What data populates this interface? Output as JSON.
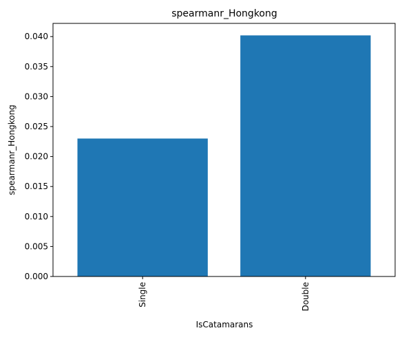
{
  "chart_data": {
    "type": "bar",
    "title": "spearmanr_Hongkong",
    "xlabel": "IsCatamarans",
    "ylabel": "spearmanr_Hongkong",
    "categories": [
      "Single",
      "Double"
    ],
    "values": [
      0.023,
      0.0402
    ],
    "ylim": [
      0,
      0.0422
    ],
    "yticks": [
      0.0,
      0.005,
      0.01,
      0.015,
      0.02,
      0.025,
      0.03,
      0.035,
      0.04
    ],
    "ytick_labels": [
      "0.000",
      "0.005",
      "0.010",
      "0.015",
      "0.020",
      "0.025",
      "0.030",
      "0.035",
      "0.040"
    ],
    "grid": false,
    "bar_color": "#1f77b4",
    "x_tick_rotation": "vertical"
  }
}
